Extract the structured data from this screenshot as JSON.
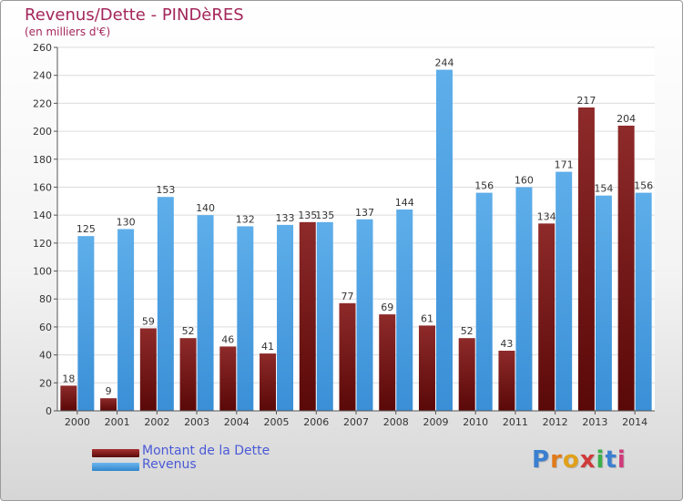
{
  "colors": {
    "debt": "#7a1414",
    "revenue": "#4a9ee0",
    "title": "#a3265a",
    "legend_text": "#4a5ad6"
  },
  "chart_data": {
    "type": "bar",
    "title": "Revenus/Dette - PINDèRES",
    "subtitle": "(en milliers d'€)",
    "categories": [
      "2000",
      "2001",
      "2002",
      "2003",
      "2004",
      "2005",
      "2006",
      "2007",
      "2008",
      "2009",
      "2010",
      "2011",
      "2012",
      "2013",
      "2014"
    ],
    "series": [
      {
        "name": "Montant de la Dette",
        "color": "#7a1414",
        "values": [
          18,
          9,
          59,
          52,
          46,
          41,
          135,
          77,
          69,
          61,
          52,
          43,
          134,
          217,
          204
        ]
      },
      {
        "name": "Revenus",
        "color": "#4a9ee0",
        "values": [
          125,
          130,
          153,
          140,
          132,
          133,
          135,
          137,
          144,
          244,
          156,
          160,
          171,
          154,
          156
        ]
      }
    ],
    "ylim": [
      0,
      260
    ],
    "yticks": [
      0,
      20,
      40,
      60,
      80,
      100,
      120,
      140,
      160,
      180,
      200,
      220,
      240,
      260
    ],
    "grid": true,
    "legend_position": "bottom-left"
  },
  "logo_text": "Proxiti"
}
